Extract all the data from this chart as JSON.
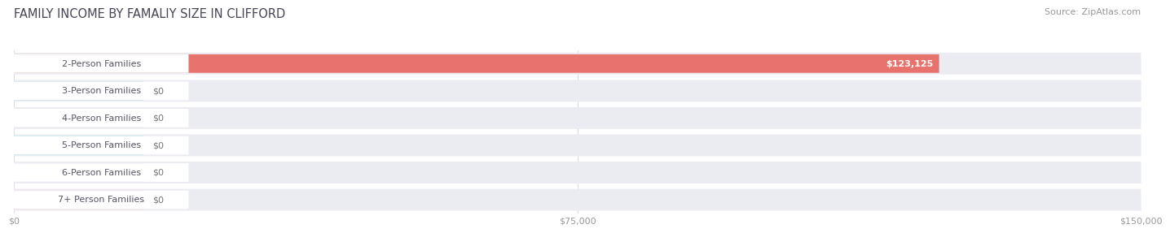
{
  "title": "FAMILY INCOME BY FAMALIY SIZE IN CLIFFORD",
  "source": "Source: ZipAtlas.com",
  "categories": [
    "2-Person Families",
    "3-Person Families",
    "4-Person Families",
    "5-Person Families",
    "6-Person Families",
    "7+ Person Families"
  ],
  "values": [
    123125,
    0,
    0,
    0,
    0,
    0
  ],
  "bar_colors": [
    "#e8736c",
    "#9ab8d8",
    "#c4a2cc",
    "#72ccc4",
    "#a8b4e8",
    "#f4a4bc"
  ],
  "value_labels": [
    "$123,125",
    "$0",
    "$0",
    "$0",
    "$0",
    "$0"
  ],
  "xlim": [
    0,
    150000
  ],
  "xticks": [
    0,
    75000,
    150000
  ],
  "xticklabels": [
    "$0",
    "$75,000",
    "$150,000"
  ],
  "bg_color": "#ffffff",
  "row_bg_color": "#ebebf2",
  "title_fontsize": 10.5,
  "source_fontsize": 8,
  "label_fontsize": 8,
  "value_fontsize": 8
}
